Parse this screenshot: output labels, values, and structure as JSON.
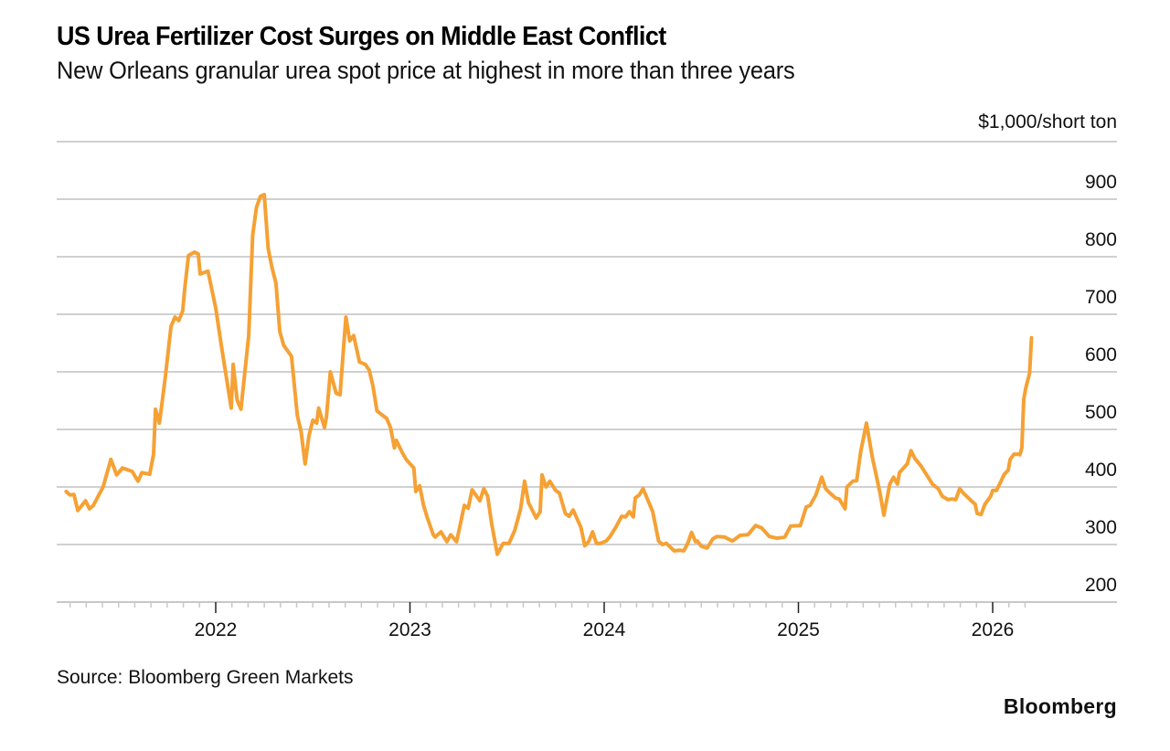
{
  "header": {
    "title": "US Urea Fertilizer Cost Surges on Middle East Conflict",
    "subtitle": "New Orleans granular urea spot price at highest in more than three years"
  },
  "footer": {
    "source": "Source: Bloomberg Green Markets",
    "brand": "Bloomberg"
  },
  "chart_data": {
    "type": "line",
    "title": "US Urea Fertilizer Cost Surges on Middle East Conflict",
    "subtitle": "New Orleans granular urea spot price at highest in more than three years",
    "unit_label": "$1,000/short ton",
    "xlabel": "",
    "ylabel": "$1,000/short ton",
    "xlim": [
      2021.19,
      2026.64
    ],
    "ylim": [
      200,
      1000
    ],
    "yticks": [
      200,
      300,
      400,
      500,
      600,
      700,
      800,
      900
    ],
    "ytick_labels": [
      "200",
      "300",
      "400",
      "500",
      "600",
      "700",
      "800",
      "900"
    ],
    "xticks": [
      2022,
      2023,
      2024,
      2025,
      2026
    ],
    "xtick_labels": [
      "2022",
      "2023",
      "2024",
      "2025",
      "2026"
    ],
    "minor_xticks": "monthly, Apr 2021 – Mar 2026",
    "grid": true,
    "y_axis_side": "right",
    "line_color": "#F5A134",
    "series": [
      {
        "name": "New Orleans granular urea spot price",
        "x": [
          2021.23,
          2021.25,
          2021.27,
          2021.29,
          2021.33,
          2021.35,
          2021.37,
          2021.42,
          2021.46,
          2021.49,
          2021.52,
          2021.57,
          2021.6,
          2021.62,
          2021.66,
          2021.68,
          2021.69,
          2021.71,
          2021.74,
          2021.77,
          2021.79,
          2021.81,
          2021.83,
          2021.84,
          2021.86,
          2021.89,
          2021.91,
          2021.92,
          2021.96,
          2022.0,
          2022.03,
          2022.08,
          2022.09,
          2022.11,
          2022.13,
          2022.17,
          2022.19,
          2022.21,
          2022.23,
          2022.25,
          2022.27,
          2022.29,
          2022.31,
          2022.33,
          2022.35,
          2022.39,
          2022.42,
          2022.44,
          2022.46,
          2022.48,
          2022.5,
          2022.52,
          2022.53,
          2022.56,
          2022.57,
          2022.59,
          2022.62,
          2022.64,
          2022.67,
          2022.69,
          2022.71,
          2022.74,
          2022.77,
          2022.79,
          2022.81,
          2022.83,
          2022.88,
          2022.9,
          2022.92,
          2022.93,
          2022.96,
          2022.98,
          2023.02,
          2023.03,
          2023.05,
          2023.07,
          2023.09,
          2023.12,
          2023.13,
          2023.16,
          2023.19,
          2023.21,
          2023.24,
          2023.28,
          2023.3,
          2023.32,
          2023.36,
          2023.38,
          2023.4,
          2023.42,
          2023.45,
          2023.48,
          2023.51,
          2023.54,
          2023.57,
          2023.59,
          2023.61,
          2023.65,
          2023.67,
          2023.68,
          2023.7,
          2023.72,
          2023.75,
          2023.77,
          2023.8,
          2023.82,
          2023.84,
          2023.88,
          2023.9,
          2023.92,
          2023.94,
          2023.96,
          2023.98,
          2024.01,
          2024.03,
          2024.06,
          2024.09,
          2024.11,
          2024.13,
          2024.15,
          2024.16,
          2024.18,
          2024.2,
          2024.22,
          2024.25,
          2024.28,
          2024.3,
          2024.32,
          2024.36,
          2024.39,
          2024.41,
          2024.43,
          2024.45,
          2024.47,
          2024.48,
          2024.5,
          2024.53,
          2024.56,
          2024.58,
          2024.62,
          2024.66,
          2024.7,
          2024.74,
          2024.78,
          2024.81,
          2024.85,
          2024.89,
          2024.93,
          2024.96,
          2025.01,
          2025.04,
          2025.06,
          2025.09,
          2025.12,
          2025.14,
          2025.16,
          2025.19,
          2025.21,
          2025.24,
          2025.25,
          2025.28,
          2025.3,
          2025.32,
          2025.35,
          2025.38,
          2025.42,
          2025.44,
          2025.47,
          2025.49,
          2025.51,
          2025.52,
          2025.56,
          2025.58,
          2025.6,
          2025.63,
          2025.66,
          2025.69,
          2025.72,
          2025.74,
          2025.77,
          2025.79,
          2025.81,
          2025.83,
          2025.85,
          2025.89,
          2025.91,
          2025.92,
          2025.94,
          2025.96,
          2025.99,
          2026.0,
          2026.02,
          2026.04,
          2026.06,
          2026.08,
          2026.09,
          2026.11,
          2026.13,
          2026.14,
          2026.15,
          2026.16,
          2026.17,
          2026.19,
          2026.2
        ],
        "values": [
          392,
          386,
          387,
          359,
          376,
          362,
          368,
          400,
          448,
          421,
          433,
          427,
          410,
          425,
          422,
          457,
          535,
          511,
          590,
          679,
          695,
          689,
          706,
          743,
          802,
          808,
          805,
          770,
          775,
          711,
          643,
          537,
          613,
          551,
          535,
          663,
          837,
          886,
          905,
          908,
          814,
          781,
          754,
          670,
          646,
          627,
          524,
          495,
          440,
          489,
          516,
          511,
          537,
          503,
          521,
          600,
          563,
          560,
          695,
          654,
          663,
          617,
          613,
          603,
          575,
          532,
          519,
          503,
          468,
          481,
          460,
          448,
          433,
          392,
          402,
          368,
          346,
          317,
          313,
          322,
          305,
          317,
          305,
          368,
          363,
          395,
          376,
          397,
          384,
          337,
          283,
          302,
          302,
          325,
          362,
          410,
          373,
          346,
          357,
          421,
          400,
          410,
          394,
          389,
          354,
          349,
          360,
          330,
          298,
          305,
          322,
          302,
          302,
          306,
          314,
          330,
          349,
          348,
          357,
          348,
          381,
          386,
          397,
          381,
          357,
          306,
          300,
          302,
          289,
          290,
          289,
          302,
          321,
          305,
          306,
          297,
          294,
          310,
          314,
          313,
          306,
          316,
          317,
          333,
          329,
          314,
          311,
          313,
          332,
          333,
          365,
          368,
          386,
          417,
          397,
          390,
          381,
          379,
          362,
          400,
          410,
          411,
          460,
          511,
          452,
          389,
          351,
          405,
          417,
          405,
          425,
          440,
          463,
          449,
          437,
          421,
          405,
          397,
          384,
          378,
          379,
          378,
          397,
          389,
          376,
          370,
          354,
          352,
          370,
          384,
          394,
          394,
          408,
          422,
          429,
          448,
          457,
          457,
          456,
          468,
          552,
          571,
          598,
          659
        ]
      }
    ]
  }
}
